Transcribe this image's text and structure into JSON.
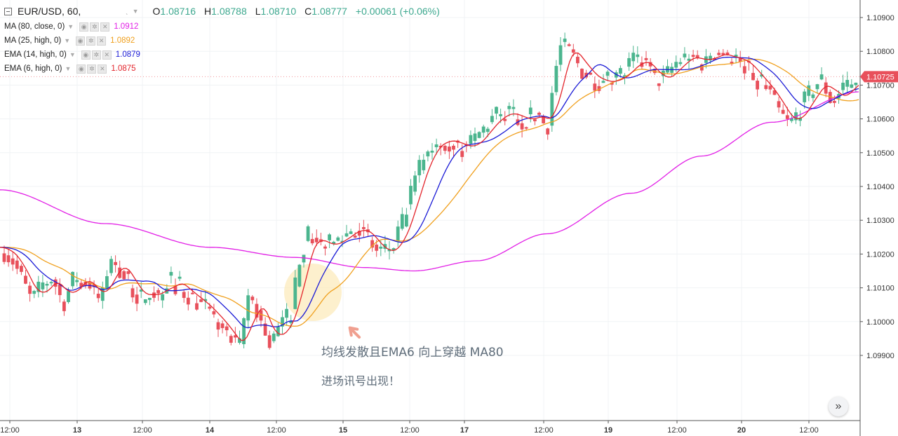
{
  "toolbar": {
    "symbol": "EUR/USD, 60,",
    "tick": "ˎ",
    "ohlc": [
      {
        "key": "O",
        "value": "1.08716"
      },
      {
        "key": "H",
        "value": "1.08788"
      },
      {
        "key": "L",
        "value": "1.08710"
      },
      {
        "key": "C",
        "value": "1.08777"
      }
    ],
    "change": "+0.00061 (+0.06%)"
  },
  "indicators": [
    {
      "name": "MA (80, close, 0)",
      "value": "1.0912",
      "color": "#e21fe6"
    },
    {
      "name": "MA (25, high, 0)",
      "value": "1.0892",
      "color": "#f0a01e"
    },
    {
      "name": "EMA (14, high, 0)",
      "value": "1.0879",
      "color": "#1a1ad6"
    },
    {
      "name": "EMA (6, high, 0)",
      "value": "1.0875",
      "color": "#e3242b"
    }
  ],
  "price_axis": {
    "labels": [
      "1.10900",
      "1.10800",
      "1.10700",
      "1.10600",
      "1.10500",
      "1.10400",
      "1.10300",
      "1.10200",
      "1.10100",
      "1.10000",
      "1.09900"
    ],
    "current_price": "1.10725",
    "current_color": "#e8505b"
  },
  "time_axis": {
    "labels": [
      "12:00",
      "13",
      "12:00",
      "14",
      "12:00",
      "15",
      "12:00",
      "17",
      "12:00",
      "19",
      "12:00",
      "20",
      "12:00"
    ]
  },
  "annotation": {
    "line1": "均线发散且EMA6 向上穿越 MA80",
    "line2": "进场讯号出现！"
  },
  "scroll_button": "»",
  "colors": {
    "up": "#4bb58e",
    "down": "#e8505b",
    "highlight": "#fce9b8",
    "arrow": "#f0a090"
  }
}
